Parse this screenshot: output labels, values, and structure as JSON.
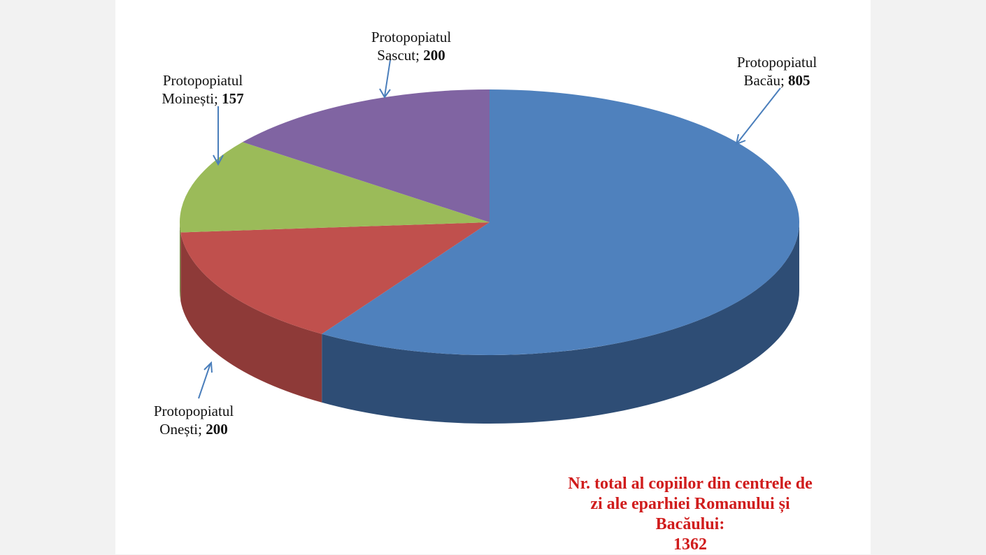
{
  "chart_data": {
    "type": "pie3d",
    "categories": [
      "Protopopiatul Bacău;",
      "Protopopiatul Onești;",
      "Protopopiatul Moinești;",
      "Protopopiatul Sascut;"
    ],
    "values": [
      805,
      200,
      157,
      200
    ],
    "colors": [
      "#4f81bd",
      "#c0504d",
      "#9bbb59",
      "#8064a2"
    ],
    "side_colors": [
      "#2e4d75",
      "#8e3a38",
      "#728a42",
      "#5e4a78"
    ],
    "annotation": "Nr. total al copiilor din centrele de zi ale eparhiei Romanului și Bacăului:",
    "total": 1362
  }
}
